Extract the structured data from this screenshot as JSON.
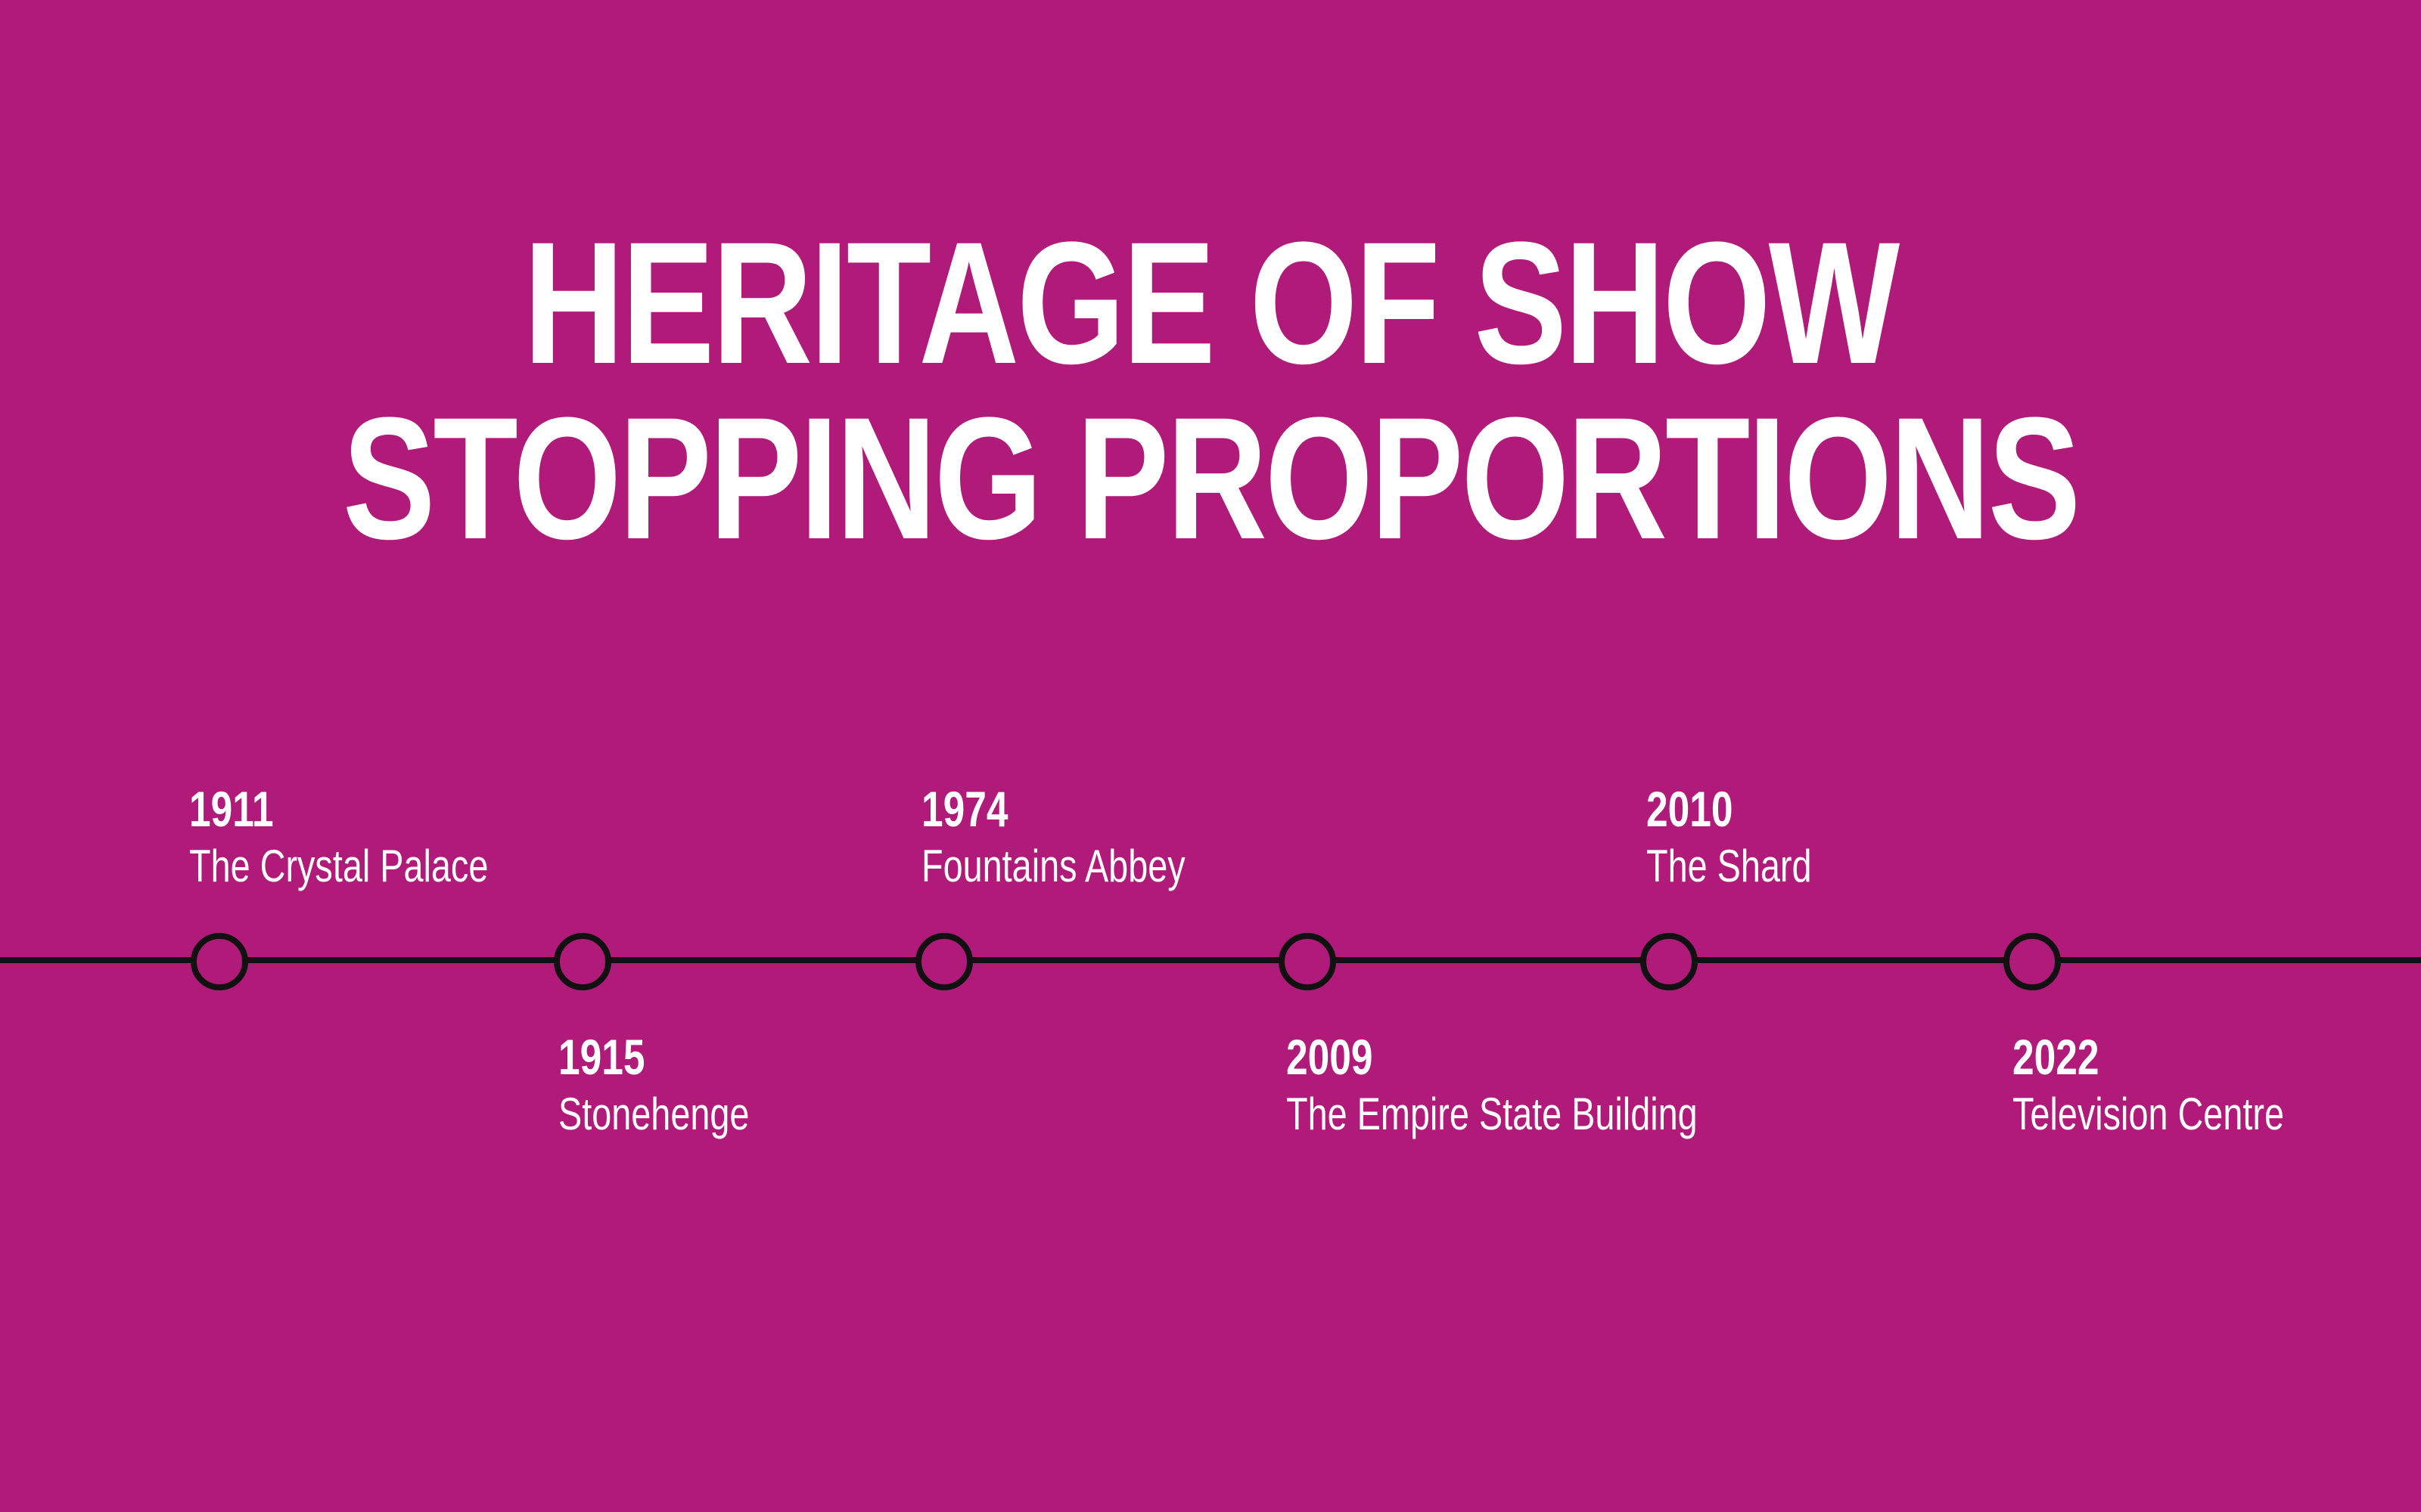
{
  "title": {
    "line1": "HERITAGE OF SHOW",
    "line2": "STOPPING PROPORTIONS"
  },
  "colors": {
    "background": "#B01A78",
    "text": "#FFFFFF",
    "line": "#111111"
  },
  "timeline": [
    {
      "year": "1911",
      "name": "The Crystal Palace",
      "side": "above"
    },
    {
      "year": "1915",
      "name": "Stonehenge",
      "side": "below"
    },
    {
      "year": "1974",
      "name": "Fountains Abbey",
      "side": "above"
    },
    {
      "year": "2009",
      "name": "The Empire State Building",
      "side": "below"
    },
    {
      "year": "2010",
      "name": "The Shard",
      "side": "above"
    },
    {
      "year": "2022",
      "name": "Television Centre",
      "side": "below"
    }
  ]
}
